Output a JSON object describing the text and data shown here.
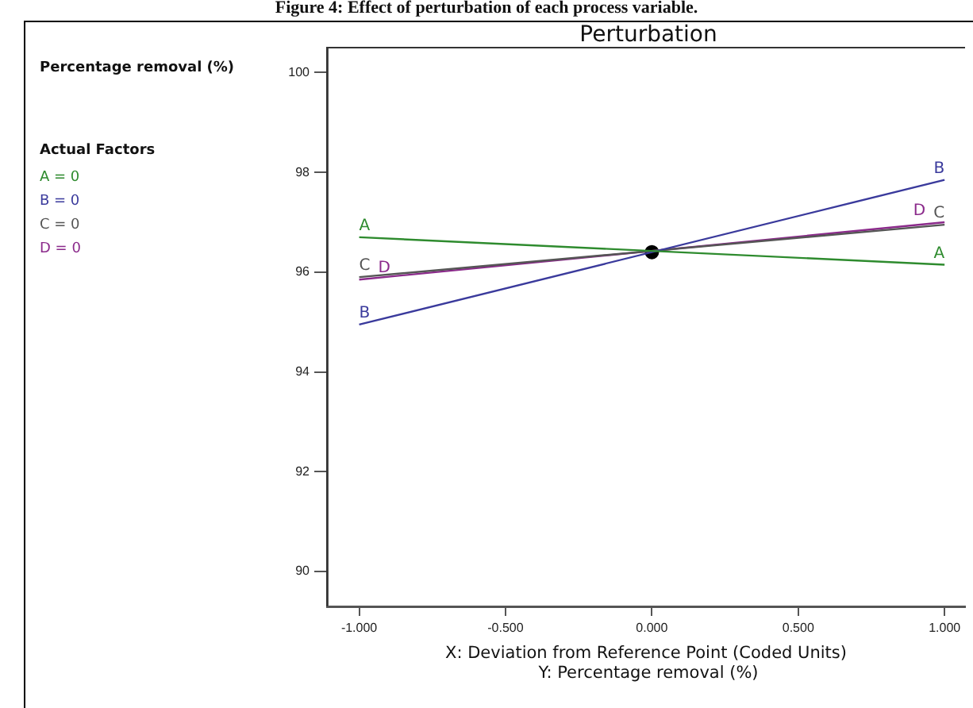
{
  "chart_data": {
    "type": "line",
    "title": "Figure 4: Effect of perturbation of each process variable.",
    "subtitle": "Perturbation",
    "xlabel": "X: Deviation from Reference Point (Coded Units)",
    "ylabel": "Percentage removal (%)",
    "x": [
      -1,
      1
    ],
    "series": [
      {
        "name": "A",
        "color": "#2e8b2e",
        "values": [
          96.7,
          96.15
        ]
      },
      {
        "name": "B",
        "color": "#3a3a9c",
        "values": [
          94.95,
          97.85
        ]
      },
      {
        "name": "C",
        "color": "#555555",
        "values": [
          95.9,
          96.95
        ]
      },
      {
        "name": "D",
        "color": "#8b2a8b",
        "values": [
          95.85,
          97.0
        ]
      },
      {
        "type": "scatter",
        "color": "#000000",
        "x": [
          0
        ],
        "values": [
          96.4
        ]
      }
    ],
    "xlim": [
      -1.11,
      1.07
    ],
    "ylim": [
      89.3,
      100.5
    ],
    "xticks": [
      {
        "value": -1,
        "label": "-1.000"
      },
      {
        "value": -0.5,
        "label": "-0.500"
      },
      {
        "value": 0,
        "label": "0.000"
      },
      {
        "value": 0.5,
        "label": "0.500"
      },
      {
        "value": 1,
        "label": "1.000"
      }
    ],
    "yticks": [
      90,
      92,
      94,
      96,
      98,
      100
    ],
    "grid": false,
    "legend": false,
    "line_style": "solid",
    "annotations": [
      "Actual Factors",
      "A = 0",
      "B = 0",
      "C = 0",
      "D = 0",
      "Y:  Percentage removal (%)"
    ]
  }
}
